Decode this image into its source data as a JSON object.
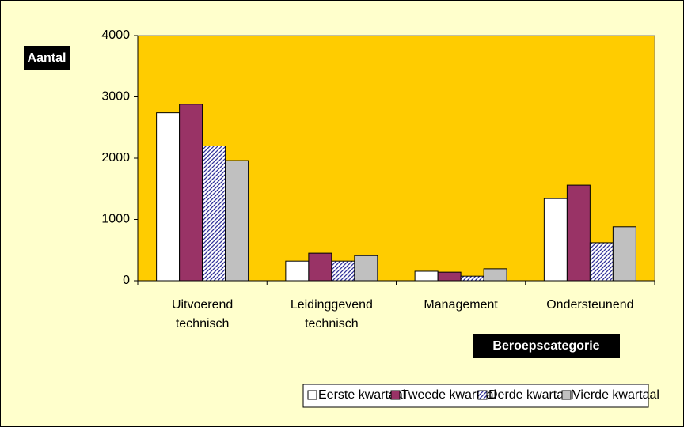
{
  "chart_data": {
    "type": "bar",
    "y_label": "Aantal",
    "x_label": "Beroepscategorie",
    "categories": [
      "Uitvoerend technisch",
      "Leidinggevend technisch",
      "Management",
      "Ondersteunend"
    ],
    "series": [
      {
        "name": "Eerste kwartaal",
        "color": "#ffffff",
        "values": [
          2740,
          320,
          155,
          1340
        ]
      },
      {
        "name": "Tweede kwartaal",
        "color": "#993366",
        "values": [
          2880,
          450,
          140,
          1560
        ]
      },
      {
        "name": "Derde kwartaal",
        "color": "#333399",
        "pattern": "hatch",
        "values": [
          2200,
          320,
          75,
          620
        ]
      },
      {
        "name": "Vierde kwartaal",
        "color": "#c0c0c0",
        "values": [
          1960,
          410,
          195,
          880
        ]
      }
    ],
    "ylim": [
      0,
      4000
    ],
    "yticks": [
      0,
      1000,
      2000,
      3000,
      4000
    ],
    "plot_color": "#ffcc00",
    "background": "#ffffcc",
    "legend": "bottom"
  }
}
